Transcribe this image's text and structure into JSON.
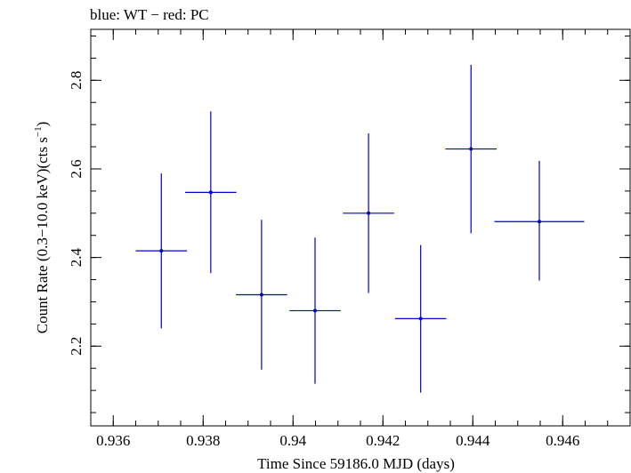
{
  "chart_data": {
    "type": "scatter",
    "title": "blue: WT − red: PC",
    "xlabel": "Time Since 59186.0 MJD (days)",
    "ylabel_main": "Count Rate (0.3−10.0 keV)(cts s",
    "ylabel_sup": "−1",
    "ylabel_end": ")",
    "xlim": [
      0.9355,
      0.9475
    ],
    "ylim": [
      2.02,
      2.915
    ],
    "x_ticks": [
      0.936,
      0.938,
      0.94,
      0.942,
      0.944,
      0.946
    ],
    "x_tick_labels": [
      "0.936",
      "0.938",
      "0.94",
      "0.942",
      "0.944",
      "0.946"
    ],
    "y_ticks": [
      2.2,
      2.4,
      2.6,
      2.8
    ],
    "y_tick_labels": [
      "2.2",
      "2.4",
      "2.6",
      "2.8"
    ],
    "grid": false,
    "series_color": "#0000cc",
    "series": [
      {
        "points": [
          {
            "x": 0.93707,
            "y": 2.415,
            "xerr": 0.00057,
            "yerr_low": 2.24,
            "yerr_high": 2.59
          },
          {
            "x": 0.93817,
            "y": 2.547,
            "xerr": 0.00057,
            "yerr_low": 2.365,
            "yerr_high": 2.73
          },
          {
            "x": 0.9393,
            "y": 2.316,
            "xerr": 0.00057,
            "yerr_low": 2.147,
            "yerr_high": 2.485
          },
          {
            "x": 0.94049,
            "y": 2.28,
            "xerr": 0.00057,
            "yerr_low": 2.115,
            "yerr_high": 2.445
          },
          {
            "x": 0.94168,
            "y": 2.5,
            "xerr": 0.00057,
            "yerr_low": 2.32,
            "yerr_high": 2.68
          },
          {
            "x": 0.94284,
            "y": 2.262,
            "xerr": 0.00057,
            "yerr_low": 2.095,
            "yerr_high": 2.428
          },
          {
            "x": 0.94396,
            "y": 2.645,
            "xerr": 0.00057,
            "yerr_low": 2.455,
            "yerr_high": 2.835
          },
          {
            "x": 0.94548,
            "y": 2.481,
            "xerr": 0.001,
            "yerr_low": 2.348,
            "yerr_high": 2.618
          }
        ]
      }
    ]
  }
}
